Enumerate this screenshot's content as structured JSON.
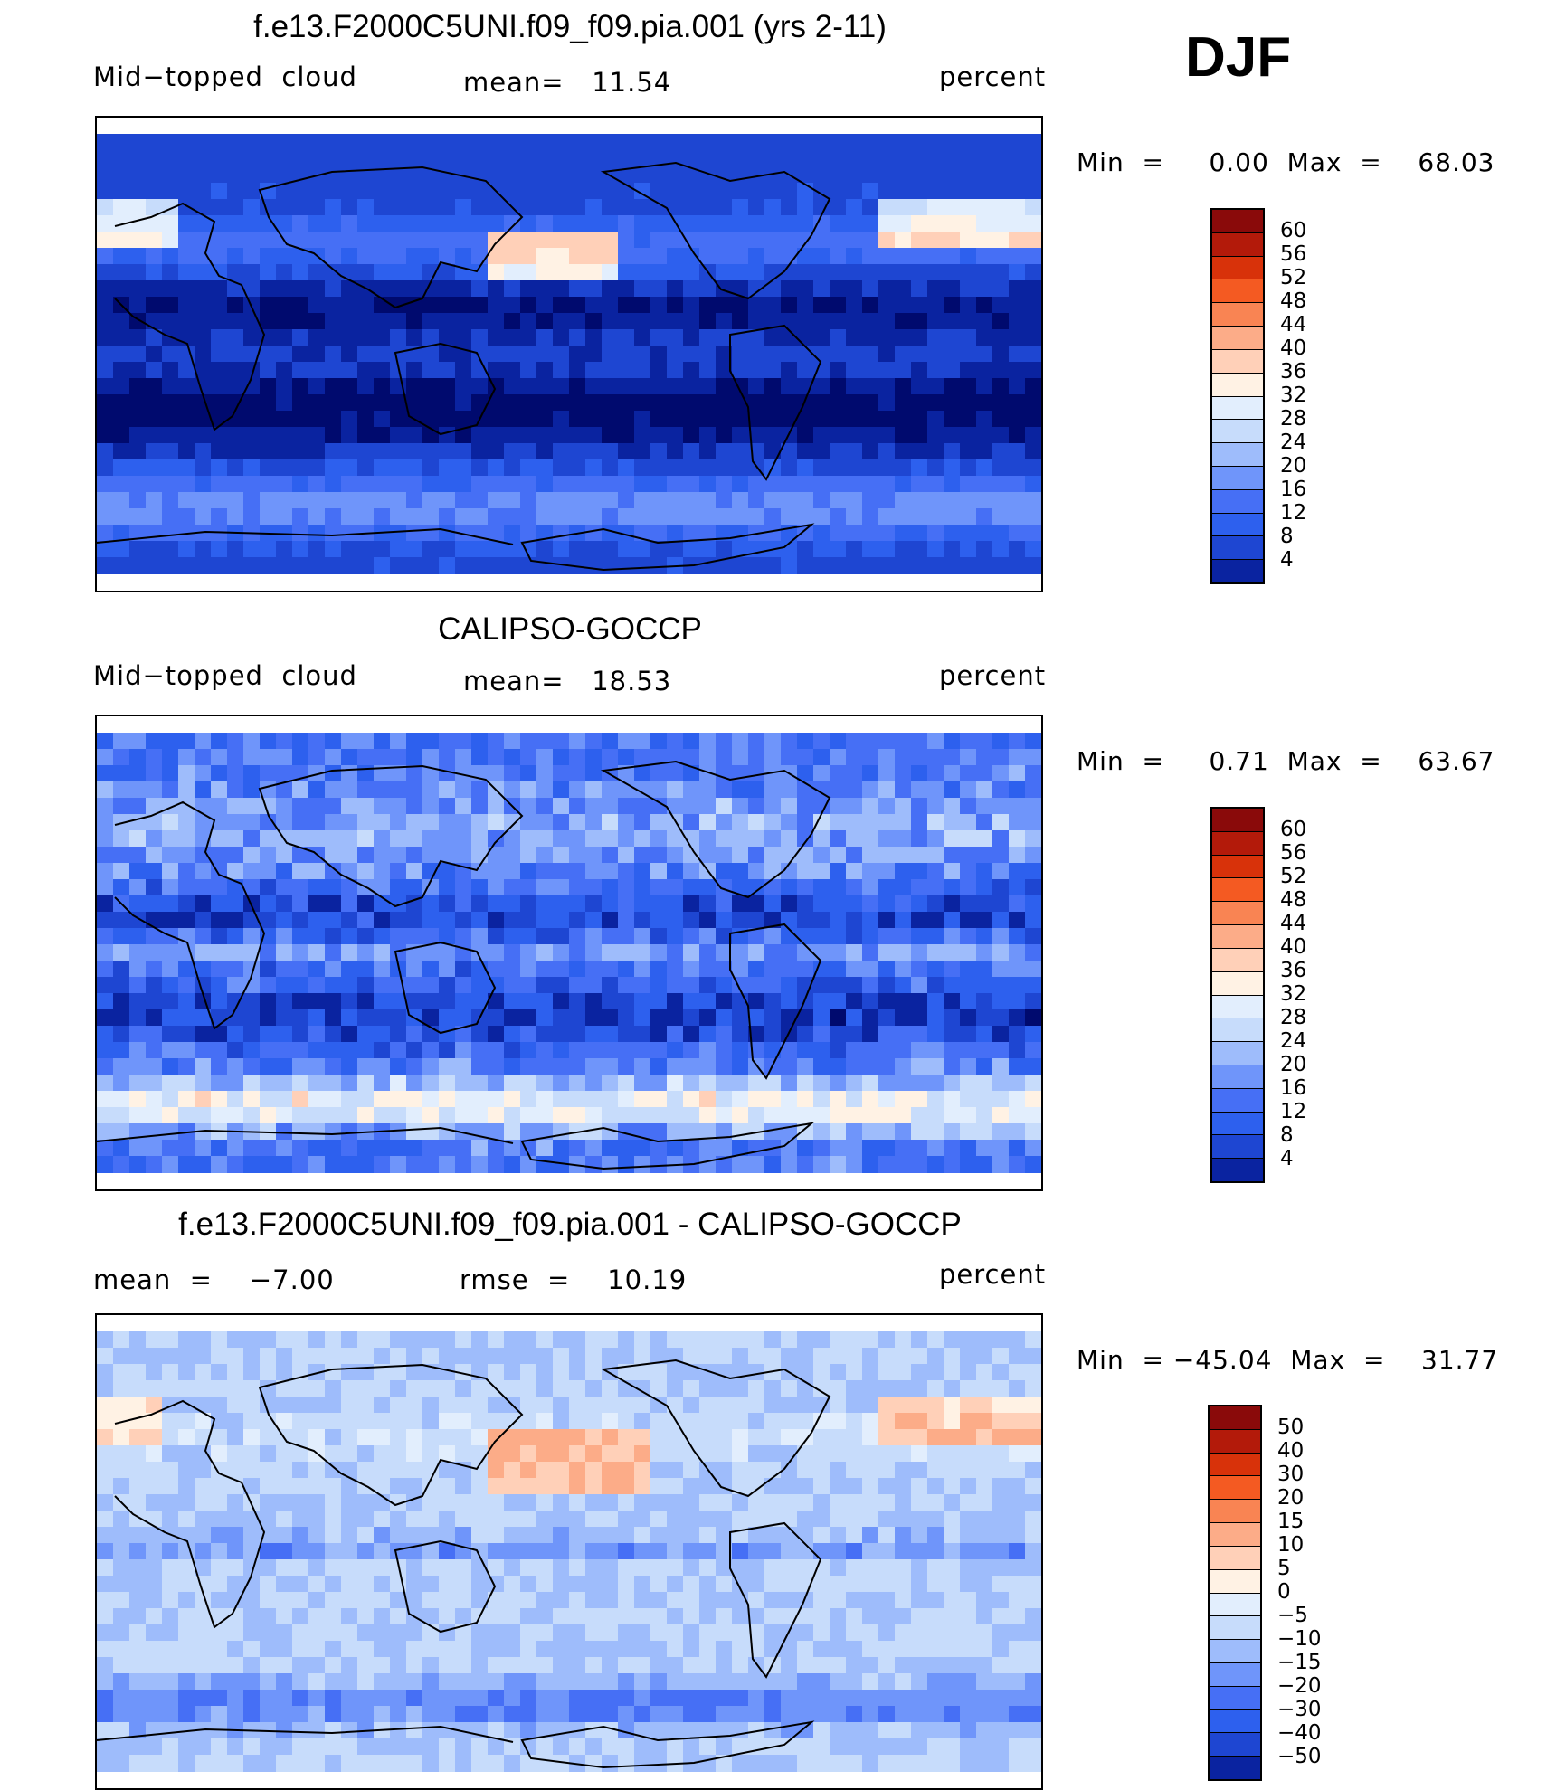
{
  "season": "DJF",
  "colors": {
    "scale16": [
      "#000a6e",
      "#0a23a0",
      "#1e46d2",
      "#2d60ee",
      "#466ff5",
      "#6f95fa",
      "#9ebcfb",
      "#c7dcfb",
      "#e2eefd",
      "#fff2e4",
      "#ffd0b8",
      "#fcac88",
      "#f98453",
      "#f45a22",
      "#d8320a",
      "#b31a0a",
      "#8a0a0a"
    ]
  },
  "panels": [
    {
      "title": "f.e13.F2000C5UNI.f09_f09.pia.001 (yrs 2-11)",
      "left_label": "Mid−topped  cloud",
      "mid_label": "mean=   11.54",
      "right_label": "percent",
      "minmax": "Min  =     0.00  Max  =    68.03",
      "colorbar_labels": [
        "60",
        "56",
        "52",
        "48",
        "44",
        "40",
        "36",
        "32",
        "28",
        "24",
        "20",
        "16",
        "12",
        "8",
        "4"
      ],
      "map_type": "model"
    },
    {
      "title": "CALIPSO-GOCCP",
      "left_label": "Mid−topped  cloud",
      "mid_label": "mean=   18.53",
      "right_label": "percent",
      "minmax": "Min  =     0.71  Max  =    63.67",
      "colorbar_labels": [
        "60",
        "56",
        "52",
        "48",
        "44",
        "40",
        "36",
        "32",
        "28",
        "24",
        "20",
        "16",
        "12",
        "8",
        "4"
      ],
      "map_type": "obs"
    },
    {
      "title": "f.e13.F2000C5UNI.f09_f09.pia.001 - CALIPSO-GOCCP",
      "left_label": "mean  =    −7.00",
      "mid_label": "rmse  =    10.19",
      "right_label": "percent",
      "minmax": "Min  = −45.04  Max  =    31.77",
      "colorbar_labels": [
        "50",
        "40",
        "30",
        "20",
        "15",
        "10",
        "5",
        "0",
        "−5",
        "−10",
        "−15",
        "−20",
        "−30",
        "−40",
        "−50"
      ],
      "map_type": "diff"
    }
  ]
}
